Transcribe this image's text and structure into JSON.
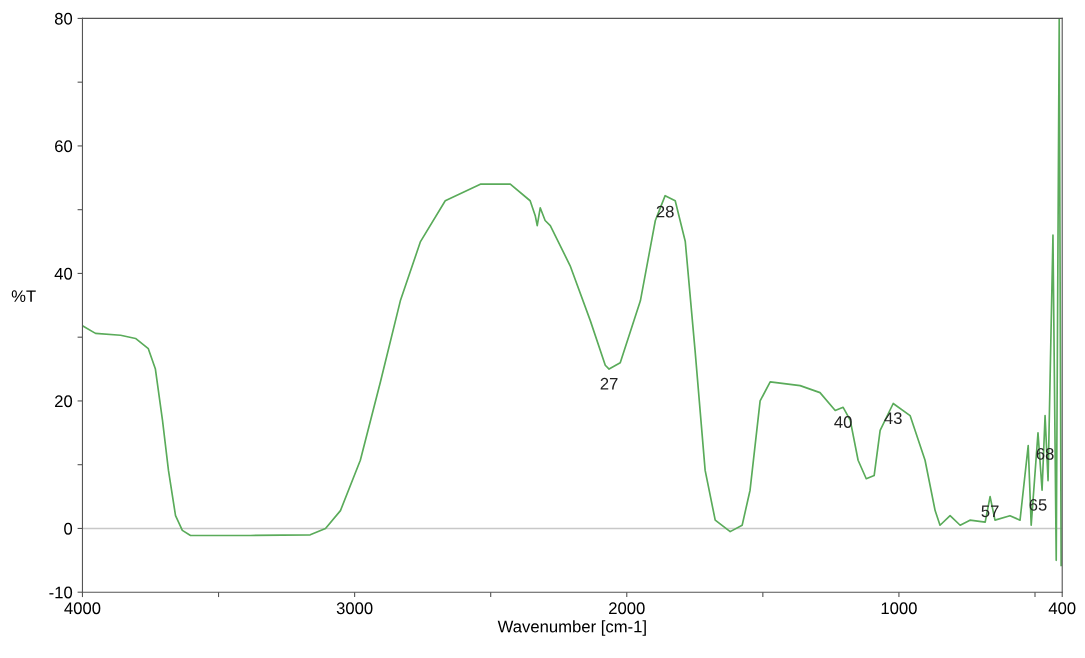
{
  "chart_data": {
    "type": "line",
    "xlabel": "Wavenumber [cm-1]",
    "ylabel": "%T",
    "xlim": [
      4000,
      400
    ],
    "ylim": [
      -10,
      80
    ],
    "xticks": [
      4000,
      {
        "value": 3500,
        "label": null
      },
      3000,
      {
        "value": 2500,
        "label": null
      },
      2000,
      {
        "value": 1500,
        "label": null
      },
      1000,
      {
        "value": 500,
        "label": null
      },
      400
    ],
    "yticks": [
      -10,
      0,
      {
        "value": 10,
        "label": null
      },
      20,
      {
        "value": 30,
        "label": null
      },
      40,
      {
        "value": 50,
        "label": null
      },
      60,
      {
        "value": 70,
        "label": null
      },
      80
    ],
    "grid": false,
    "legend": false,
    "marker": "none",
    "line_style": "solid",
    "ref_lines": [
      {
        "axis": "y",
        "value": 0,
        "color": "#c8c8c8"
      }
    ],
    "series": [
      {
        "color": "#5aab5a",
        "x": [
          4000,
          3952,
          3860,
          3805,
          3758,
          3732,
          3706,
          3684,
          3658,
          3633,
          3603,
          3383,
          3163,
          3107,
          3052,
          2979,
          2905,
          2832,
          2758,
          2667,
          2538,
          2428,
          2355,
          2336,
          2329,
          2318,
          2300,
          2281,
          2208,
          2134,
          2079,
          2065,
          2024,
          1950,
          1895,
          1859,
          1822,
          1785,
          1749,
          1712,
          1675,
          1620,
          1576,
          1547,
          1510,
          1473,
          1363,
          1290,
          1234,
          1205,
          1179,
          1150,
          1120,
          1091,
          1069,
          1021,
          959,
          904,
          867,
          849,
          812,
          775,
          739,
          683,
          665,
          647,
          592,
          555,
          525,
          514,
          489,
          474,
          463,
          452,
          434,
          422,
          411,
          404
        ],
        "values": [
          31.8,
          30.6,
          30.3,
          29.8,
          28.2,
          25,
          17,
          9.1,
          2,
          -0.3,
          -1.1,
          -1.1,
          -1,
          0,
          2.8,
          10.7,
          23,
          35.7,
          45,
          51.4,
          54,
          54,
          51.4,
          49,
          47.5,
          50.3,
          48.3,
          47.5,
          41.2,
          32.6,
          25.6,
          25,
          26,
          35.7,
          48.3,
          52.2,
          51.4,
          45,
          27.9,
          9.1,
          1.3,
          -0.5,
          0.5,
          6,
          20,
          23,
          22.4,
          21.3,
          18.5,
          19,
          17,
          10.7,
          7.8,
          8.3,
          15.4,
          19.6,
          17.7,
          10.7,
          2.8,
          0.5,
          2,
          0.5,
          1.3,
          1,
          5,
          1.3,
          2,
          1.3,
          13,
          0.5,
          15,
          6,
          17.7,
          7.5,
          46,
          -5,
          80,
          -5.8
        ]
      }
    ],
    "annotations": [
      {
        "text": "27",
        "x": 2065,
        "y": 25
      },
      {
        "text": "28",
        "x": 1859,
        "y": 52
      },
      {
        "text": "40",
        "x": 1205,
        "y": 19
      },
      {
        "text": "43",
        "x": 1021,
        "y": 19.6
      },
      {
        "text": "57",
        "x": 665,
        "y": 5
      },
      {
        "text": "65",
        "x": 489,
        "y": 6
      },
      {
        "text": "68",
        "x": 463,
        "y": 14
      }
    ]
  }
}
